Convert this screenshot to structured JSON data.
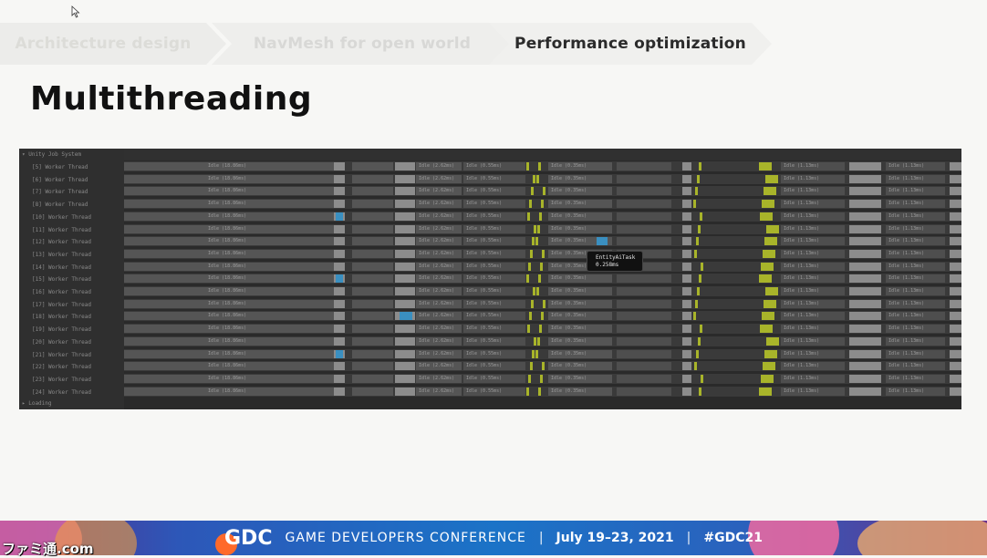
{
  "breadcrumbs": [
    {
      "label": "Architecture design",
      "state": "past"
    },
    {
      "label": "NavMesh for open world",
      "state": "past"
    },
    {
      "label": "Performance optimization",
      "state": "current"
    }
  ],
  "slide": {
    "title": "Multithreading"
  },
  "profiler": {
    "group_label": "▾ Unity Job System",
    "threads": [
      "[5] Worker Thread",
      "[6] Worker Thread",
      "[7] Worker Thread",
      "[8] Worker Thread",
      "[10] Worker Thread",
      "[11] Worker Thread",
      "[12] Worker Thread",
      "[13] Worker Thread",
      "[14] Worker Thread",
      "[15] Worker Thread",
      "[16] Worker Thread",
      "[17] Worker Thread",
      "[18] Worker Thread",
      "[19] Worker Thread",
      "[20] Worker Thread",
      "[21] Worker Thread",
      "[22] Worker Thread",
      "[23] Worker Thread",
      "[24] Worker Thread"
    ],
    "idle_label": "Idle (18.86ms)",
    "idle_label_2": "Idle (2.62ms)",
    "idle_label_3": "Idle (0.35ms)",
    "idle_label_4": "Idle (1.13ms)",
    "idle_label_5": "Idle (0.55ms)",
    "tooltip": {
      "name": "EntityAiTask",
      "time": "0.258ms"
    },
    "loading_label": "▸ Loading",
    "colors": {
      "idle": "#555555",
      "yellow": "#a8b42a",
      "blue": "#3a8fc0",
      "light": "#8c8c8c",
      "purple": "#7a6d9a"
    }
  },
  "banner": {
    "logo": "GDC",
    "conference": "GAME DEVELOPERS CONFERENCE",
    "separator": "|",
    "dates": "July 19–23, 2021",
    "hashtag": "#GDC21"
  },
  "watermark": "ファミ通.com"
}
